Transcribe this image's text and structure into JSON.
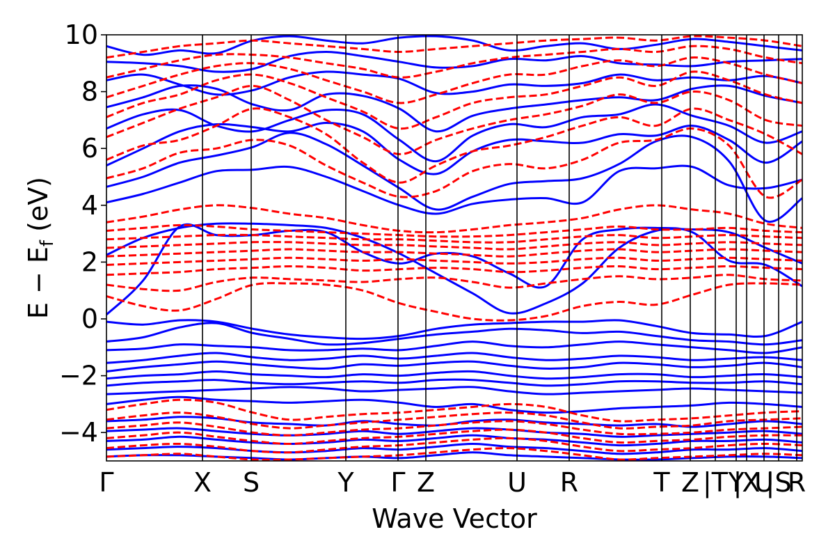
{
  "chart_data": {
    "type": "line",
    "title": "",
    "xlabel": "Wave Vector",
    "ylabel_parts": {
      "a": "E − E",
      "sub": "f",
      "b": " (eV)"
    },
    "ylim": [
      -5,
      10
    ],
    "yticks": [
      10,
      8,
      6,
      4,
      2,
      0,
      -2,
      -4
    ],
    "ytick_labels": [
      "10",
      "8",
      "6",
      "4",
      "2",
      "0",
      "−2",
      "−4"
    ],
    "kpath": [
      {
        "label": "Γ",
        "x": 0.0
      },
      {
        "label": "X",
        "x": 1.38
      },
      {
        "label": "S",
        "x": 2.08
      },
      {
        "label": "Y",
        "x": 3.44
      },
      {
        "label": "Γ",
        "x": 4.19
      },
      {
        "label": "Z",
        "x": 4.59
      },
      {
        "label": "U",
        "x": 5.9
      },
      {
        "label": "R",
        "x": 6.65
      },
      {
        "label": "T",
        "x": 7.98
      },
      {
        "label": "Z",
        "x": 8.39
      },
      {
        "label": "|T",
        "x": 8.75
      },
      {
        "label": "Y",
        "x": 9.05
      },
      {
        "label": "|X",
        "x": 9.2
      },
      {
        "label": "U",
        "x": 9.45
      },
      {
        "label": "|S",
        "x": 9.66
      },
      {
        "label": "R",
        "x": 9.92
      }
    ],
    "xmax": 10.0,
    "series": [
      {
        "style": "solid",
        "color": "#0000ff",
        "bands": [
          [
            0.15,
            1.35,
            3.25,
            2.95,
            2.95,
            3.1,
            3.05,
            2.35,
            1.95,
            2.3,
            2.2,
            1.6,
            1.15,
            2.8,
            3.15,
            3.2,
            3.05,
            2.05,
            1.9,
            1.15
          ],
          [
            2.25,
            2.85,
            3.2,
            3.35,
            3.35,
            3.3,
            3.2,
            2.85,
            2.3,
            1.6,
            0.9,
            0.2,
            0.55,
            1.25,
            2.5,
            3.1,
            3.15,
            3.05,
            2.5,
            1.95
          ],
          [
            4.1,
            4.4,
            4.8,
            5.2,
            5.25,
            5.35,
            5.0,
            4.5,
            4.0,
            3.7,
            4.05,
            4.2,
            4.25,
            4.1,
            5.2,
            5.3,
            5.35,
            4.7,
            4.6,
            4.9
          ],
          [
            4.65,
            5.0,
            5.5,
            5.75,
            6.05,
            6.55,
            6.15,
            5.4,
            4.6,
            3.85,
            4.3,
            4.75,
            4.85,
            4.95,
            5.45,
            6.25,
            6.4,
            5.55,
            3.45,
            4.25
          ],
          [
            5.4,
            6.0,
            6.6,
            6.85,
            6.75,
            6.6,
            6.9,
            6.6,
            5.6,
            5.1,
            5.9,
            6.3,
            6.25,
            6.2,
            6.5,
            6.45,
            6.8,
            6.3,
            5.5,
            6.25
          ],
          [
            6.7,
            7.2,
            7.35,
            6.8,
            6.6,
            7.0,
            7.35,
            7.2,
            6.3,
            5.55,
            6.45,
            6.85,
            6.75,
            7.1,
            7.2,
            7.55,
            7.15,
            6.8,
            6.2,
            6.6
          ],
          [
            7.45,
            7.8,
            8.2,
            8.1,
            7.55,
            7.35,
            7.9,
            7.85,
            7.4,
            6.6,
            7.15,
            7.4,
            7.55,
            7.7,
            7.8,
            7.7,
            8.1,
            8.2,
            7.85,
            7.6
          ],
          [
            8.4,
            8.6,
            8.25,
            7.9,
            8.05,
            8.5,
            8.7,
            8.6,
            8.45,
            7.95,
            8.0,
            8.25,
            8.2,
            8.3,
            8.6,
            8.4,
            8.5,
            8.4,
            8.55,
            8.3
          ],
          [
            9.05,
            9.0,
            8.9,
            8.7,
            8.8,
            9.25,
            9.4,
            9.25,
            9.05,
            8.85,
            8.9,
            9.15,
            9.1,
            9.25,
            9.0,
            8.95,
            8.9,
            9.05,
            9.1,
            9.15
          ],
          [
            9.6,
            9.3,
            9.45,
            9.35,
            9.8,
            9.95,
            9.8,
            9.7,
            9.9,
            9.95,
            9.8,
            9.45,
            9.6,
            9.7,
            9.5,
            9.65,
            9.85,
            9.75,
            9.6,
            9.45
          ],
          [
            -0.1,
            -0.2,
            -0.05,
            -0.1,
            -0.35,
            -0.55,
            -0.65,
            -0.7,
            -0.6,
            -0.35,
            -0.2,
            -0.15,
            -0.1,
            -0.1,
            -0.05,
            -0.25,
            -0.5,
            -0.55,
            -0.6,
            -0.1
          ],
          [
            -0.8,
            -0.65,
            -0.3,
            -0.15,
            -0.5,
            -0.7,
            -0.9,
            -0.85,
            -0.7,
            -0.55,
            -0.45,
            -0.35,
            -0.4,
            -0.5,
            -0.45,
            -0.6,
            -0.75,
            -0.8,
            -0.9,
            -0.75
          ],
          [
            -1.1,
            -1.05,
            -0.9,
            -0.95,
            -1.0,
            -1.1,
            -1.1,
            -1.05,
            -1.1,
            -0.95,
            -0.8,
            -0.95,
            -1.0,
            -0.9,
            -0.8,
            -0.9,
            -1.0,
            -1.1,
            -1.2,
            -1.0
          ],
          [
            -1.55,
            -1.45,
            -1.3,
            -1.2,
            -1.35,
            -1.45,
            -1.4,
            -1.3,
            -1.4,
            -1.3,
            -1.2,
            -1.35,
            -1.45,
            -1.4,
            -1.3,
            -1.35,
            -1.45,
            -1.4,
            -1.35,
            -1.45
          ],
          [
            -1.85,
            -1.7,
            -1.6,
            -1.5,
            -1.6,
            -1.7,
            -1.75,
            -1.6,
            -1.65,
            -1.55,
            -1.5,
            -1.65,
            -1.75,
            -1.7,
            -1.55,
            -1.6,
            -1.7,
            -1.65,
            -1.55,
            -1.7
          ],
          [
            -2.1,
            -2.0,
            -1.95,
            -1.85,
            -1.95,
            -2.0,
            -2.05,
            -1.95,
            -2.0,
            -1.9,
            -1.85,
            -2.0,
            -2.1,
            -2.05,
            -1.95,
            -1.95,
            -2.05,
            -2.0,
            -1.95,
            -2.05
          ],
          [
            -2.35,
            -2.25,
            -2.2,
            -2.15,
            -2.25,
            -2.3,
            -2.25,
            -2.2,
            -2.25,
            -2.15,
            -2.15,
            -2.25,
            -2.35,
            -2.3,
            -2.2,
            -2.2,
            -2.25,
            -2.25,
            -2.2,
            -2.3
          ],
          [
            -2.65,
            -2.6,
            -2.55,
            -2.5,
            -2.45,
            -2.4,
            -2.45,
            -2.55,
            -2.5,
            -2.45,
            -2.4,
            -2.55,
            -2.65,
            -2.6,
            -2.55,
            -2.5,
            -2.45,
            -2.5,
            -2.55,
            -2.6
          ],
          [
            -3.0,
            -2.85,
            -2.75,
            -2.85,
            -2.9,
            -2.95,
            -2.9,
            -2.85,
            -2.95,
            -3.1,
            -3.0,
            -3.2,
            -3.3,
            -3.25,
            -3.15,
            -3.1,
            -3.05,
            -2.95,
            -3.0,
            -3.1
          ],
          [
            -3.6,
            -3.55,
            -3.45,
            -3.5,
            -3.65,
            -3.7,
            -3.75,
            -3.6,
            -3.7,
            -3.75,
            -3.6,
            -3.55,
            -3.65,
            -3.7,
            -3.75,
            -3.7,
            -3.8,
            -3.7,
            -3.6,
            -3.7
          ],
          [
            -3.95,
            -3.9,
            -3.85,
            -3.95,
            -4.05,
            -4.1,
            -4.05,
            -3.95,
            -4.05,
            -3.95,
            -3.85,
            -3.9,
            -4.0,
            -4.05,
            -4.15,
            -4.1,
            -4.05,
            -4.0,
            -3.95,
            -4.05
          ],
          [
            -4.3,
            -4.25,
            -4.15,
            -4.25,
            -4.35,
            -4.4,
            -4.35,
            -4.25,
            -4.3,
            -4.2,
            -4.1,
            -4.2,
            -4.25,
            -4.35,
            -4.45,
            -4.4,
            -4.3,
            -4.3,
            -4.25,
            -4.35
          ],
          [
            -4.6,
            -4.55,
            -4.5,
            -4.55,
            -4.65,
            -4.7,
            -4.65,
            -4.55,
            -4.6,
            -4.5,
            -4.4,
            -4.5,
            -4.55,
            -4.65,
            -4.75,
            -4.7,
            -4.6,
            -4.6,
            -4.55,
            -4.65
          ],
          [
            -4.85,
            -4.8,
            -4.8,
            -4.85,
            -4.9,
            -4.95,
            -4.9,
            -4.85,
            -4.9,
            -4.8,
            -4.7,
            -4.8,
            -4.85,
            -4.9,
            -4.95,
            -4.95,
            -4.9,
            -4.85,
            -4.85,
            -4.9
          ]
        ]
      },
      {
        "style": "dashed",
        "color": "#ff0000",
        "bands": [
          [
            0.8,
            0.45,
            0.3,
            0.7,
            1.2,
            1.25,
            1.2,
            1.0,
            0.55,
            0.25,
            0.0,
            -0.05,
            0.1,
            0.45,
            0.6,
            0.5,
            0.85,
            1.2,
            1.25,
            1.2
          ],
          [
            1.2,
            1.05,
            1.0,
            1.3,
            1.45,
            1.4,
            1.35,
            1.3,
            1.4,
            1.45,
            1.3,
            1.1,
            1.25,
            1.4,
            1.5,
            1.4,
            1.45,
            1.55,
            1.4,
            1.35
          ],
          [
            1.55,
            1.6,
            1.65,
            1.75,
            1.8,
            1.85,
            1.8,
            1.7,
            1.75,
            1.8,
            1.75,
            1.65,
            1.7,
            1.8,
            1.85,
            1.75,
            1.8,
            1.85,
            1.8,
            1.75
          ],
          [
            1.9,
            1.95,
            2.0,
            2.05,
            2.1,
            2.15,
            2.1,
            2.05,
            2.1,
            2.05,
            2.0,
            1.95,
            2.0,
            2.1,
            2.15,
            2.05,
            2.1,
            2.15,
            2.1,
            2.05
          ],
          [
            2.2,
            2.25,
            2.3,
            2.35,
            2.4,
            2.45,
            2.4,
            2.35,
            2.35,
            2.3,
            2.25,
            2.2,
            2.3,
            2.4,
            2.45,
            2.35,
            2.4,
            2.45,
            2.4,
            2.35
          ],
          [
            2.5,
            2.55,
            2.6,
            2.65,
            2.7,
            2.7,
            2.65,
            2.6,
            2.6,
            2.55,
            2.5,
            2.45,
            2.55,
            2.65,
            2.7,
            2.6,
            2.65,
            2.7,
            2.65,
            2.6
          ],
          [
            2.8,
            2.85,
            2.9,
            2.95,
            2.95,
            2.9,
            2.85,
            2.8,
            2.8,
            2.75,
            2.7,
            2.7,
            2.8,
            2.9,
            2.95,
            2.85,
            2.9,
            2.95,
            2.9,
            2.85
          ],
          [
            3.1,
            3.2,
            3.3,
            3.25,
            3.15,
            3.1,
            3.05,
            3.0,
            2.95,
            2.9,
            2.9,
            2.95,
            3.05,
            3.15,
            3.25,
            3.15,
            3.15,
            3.2,
            3.1,
            3.05
          ],
          [
            3.4,
            3.6,
            3.85,
            4.0,
            3.9,
            3.7,
            3.55,
            3.3,
            3.1,
            3.05,
            3.15,
            3.3,
            3.4,
            3.55,
            3.85,
            4.0,
            3.85,
            3.7,
            3.35,
            3.2
          ],
          [
            4.95,
            5.3,
            5.85,
            6.0,
            6.3,
            6.1,
            5.4,
            4.8,
            4.3,
            4.5,
            5.2,
            5.45,
            5.3,
            5.6,
            6.2,
            6.3,
            6.7,
            6.1,
            4.3,
            4.9
          ],
          [
            5.6,
            6.1,
            6.3,
            6.8,
            7.4,
            7.1,
            6.5,
            5.5,
            4.8,
            5.4,
            5.9,
            6.1,
            6.4,
            6.8,
            7.1,
            6.8,
            7.4,
            7.0,
            6.5,
            5.8
          ],
          [
            6.4,
            6.9,
            7.4,
            7.8,
            8.2,
            7.7,
            7.0,
            6.4,
            5.8,
            6.3,
            6.7,
            7.0,
            7.2,
            7.5,
            7.9,
            7.6,
            8.0,
            7.7,
            7.0,
            6.8
          ],
          [
            7.1,
            7.6,
            7.9,
            8.4,
            8.6,
            8.3,
            7.8,
            7.3,
            6.7,
            7.1,
            7.6,
            7.8,
            7.9,
            8.2,
            8.5,
            8.2,
            8.7,
            8.4,
            7.9,
            7.6
          ],
          [
            7.8,
            8.2,
            8.6,
            8.9,
            9.0,
            8.8,
            8.4,
            8.0,
            7.6,
            7.9,
            8.3,
            8.6,
            8.6,
            8.9,
            9.1,
            8.9,
            9.2,
            9.0,
            8.6,
            8.3
          ],
          [
            8.5,
            8.8,
            9.1,
            9.3,
            9.3,
            9.2,
            9.0,
            8.8,
            8.5,
            8.7,
            9.0,
            9.2,
            9.3,
            9.4,
            9.5,
            9.4,
            9.6,
            9.5,
            9.2,
            9.0
          ],
          [
            9.2,
            9.4,
            9.6,
            9.7,
            9.8,
            9.7,
            9.6,
            9.5,
            9.4,
            9.5,
            9.6,
            9.7,
            9.8,
            9.85,
            9.9,
            9.8,
            9.95,
            9.9,
            9.8,
            9.6
          ],
          [
            -3.2,
            -3.0,
            -2.85,
            -2.95,
            -3.3,
            -3.55,
            -3.45,
            -3.35,
            -3.3,
            -3.2,
            -3.1,
            -3.0,
            -3.1,
            -3.4,
            -3.6,
            -3.55,
            -3.5,
            -3.4,
            -3.3,
            -3.25
          ],
          [
            -3.55,
            -3.4,
            -3.3,
            -3.45,
            -3.7,
            -3.85,
            -3.75,
            -3.65,
            -3.55,
            -3.45,
            -3.35,
            -3.3,
            -3.4,
            -3.65,
            -3.85,
            -3.8,
            -3.75,
            -3.6,
            -3.55,
            -3.5
          ],
          [
            -3.85,
            -3.75,
            -3.65,
            -3.8,
            -4.0,
            -4.1,
            -4.0,
            -3.9,
            -3.85,
            -3.75,
            -3.65,
            -3.6,
            -3.7,
            -3.9,
            -4.05,
            -4.05,
            -4.0,
            -3.9,
            -3.85,
            -3.8
          ],
          [
            -4.2,
            -4.1,
            -4.0,
            -4.15,
            -4.3,
            -4.4,
            -4.3,
            -4.2,
            -4.15,
            -4.05,
            -3.95,
            -3.9,
            -4.0,
            -4.2,
            -4.35,
            -4.3,
            -4.25,
            -4.15,
            -4.1,
            -4.1
          ],
          [
            -4.55,
            -4.45,
            -4.4,
            -4.5,
            -4.65,
            -4.7,
            -4.6,
            -4.5,
            -4.45,
            -4.35,
            -4.25,
            -4.2,
            -4.3,
            -4.5,
            -4.65,
            -4.6,
            -4.55,
            -4.45,
            -4.4,
            -4.45
          ],
          [
            -4.85,
            -4.8,
            -4.75,
            -4.85,
            -4.95,
            -4.95,
            -4.9,
            -4.85,
            -4.8,
            -4.7,
            -4.6,
            -4.55,
            -4.65,
            -4.8,
            -4.95,
            -4.9,
            -4.85,
            -4.8,
            -4.75,
            -4.8
          ]
        ]
      }
    ]
  }
}
